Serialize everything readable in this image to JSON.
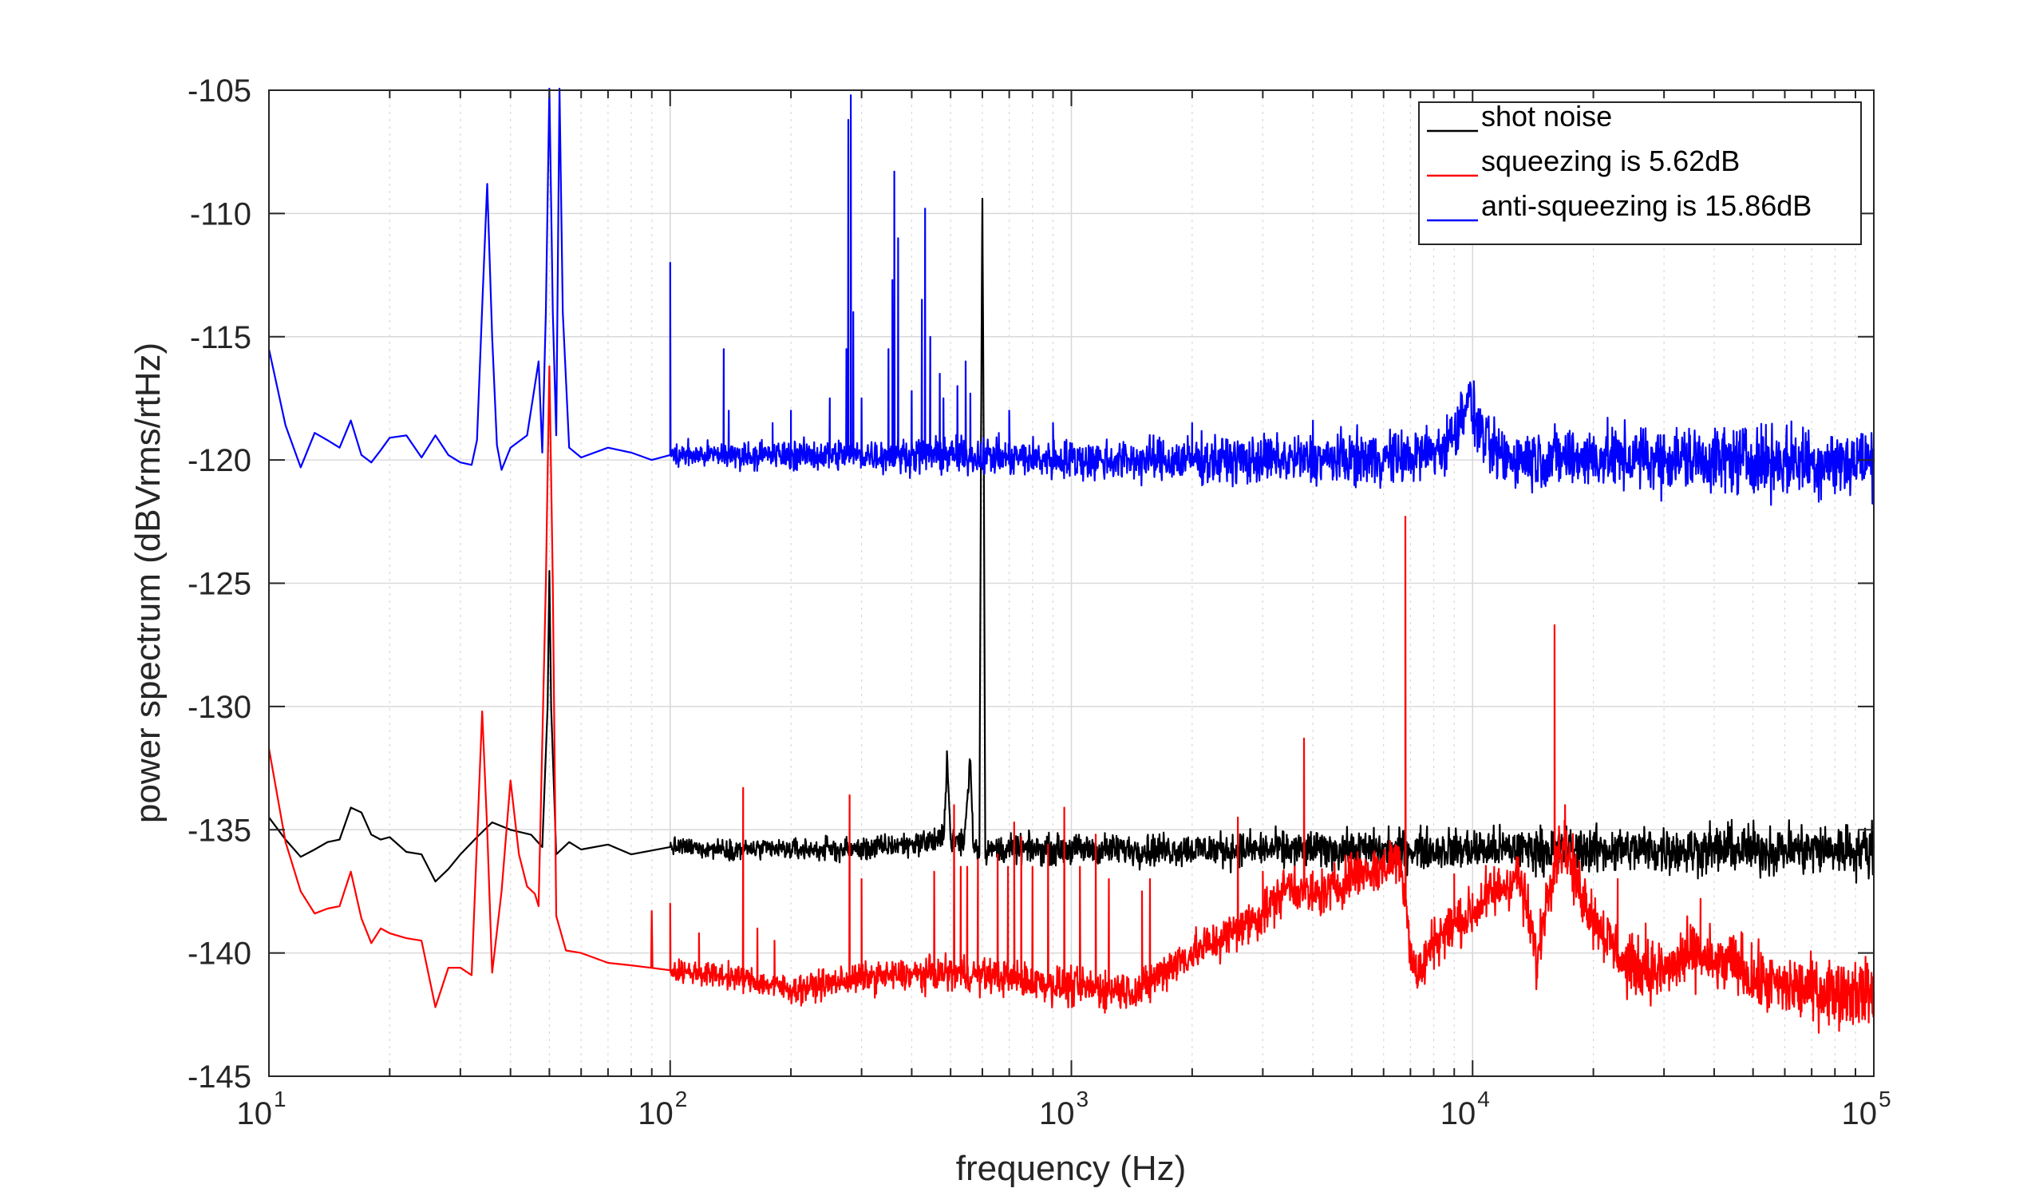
{
  "chart_data": {
    "type": "line",
    "xscale": "log",
    "xlabel": "frequency (Hz)",
    "ylabel": "power spectrum (dBVrms/rtHz)",
    "xlim": [
      10,
      100000
    ],
    "ylim": [
      -145,
      -105
    ],
    "x_ticks": [
      {
        "base": "10",
        "exp": "1"
      },
      {
        "base": "10",
        "exp": "2"
      },
      {
        "base": "10",
        "exp": "3"
      },
      {
        "base": "10",
        "exp": "4"
      },
      {
        "base": "10",
        "exp": "5"
      }
    ],
    "y_ticks": [
      "-105",
      "-110",
      "-115",
      "-120",
      "-125",
      "-130",
      "-135",
      "-140",
      "-145"
    ],
    "grid": true,
    "legend_position": "top-right",
    "series": [
      {
        "name": "shot noise",
        "color": "#000000",
        "baseline": -135.8,
        "noise": 0.55,
        "points": [
          [
            10,
            -134.5
          ],
          [
            11,
            -135.4
          ],
          [
            12,
            -136.1
          ],
          [
            13,
            -135.8
          ],
          [
            14,
            -135.5
          ],
          [
            15,
            -135.4
          ],
          [
            16,
            -134.1
          ],
          [
            17,
            -134.3
          ],
          [
            18,
            -135.2
          ],
          [
            19,
            -135.4
          ],
          [
            20,
            -135.3
          ],
          [
            22,
            -135.9
          ],
          [
            24,
            -136.0
          ],
          [
            26,
            -137.1
          ],
          [
            28,
            -136.6
          ],
          [
            30,
            -136.0
          ],
          [
            33,
            -135.3
          ],
          [
            36,
            -134.7
          ],
          [
            40,
            -135.0
          ],
          [
            45,
            -135.2
          ],
          [
            48,
            -135.7
          ],
          [
            49.5,
            -130.0
          ],
          [
            50,
            -124.5
          ],
          [
            50.5,
            -130.0
          ],
          [
            52,
            -136.0
          ],
          [
            56,
            -135.5
          ],
          [
            60,
            -135.8
          ],
          [
            70,
            -135.6
          ],
          [
            80,
            -136.0
          ],
          [
            100,
            -135.7
          ],
          [
            150,
            -135.8
          ],
          [
            300,
            -135.8
          ],
          [
            480,
            -135.4
          ],
          [
            490,
            -131.9
          ],
          [
            500,
            -135.4
          ],
          [
            540,
            -135.5
          ],
          [
            560,
            -132.2
          ],
          [
            570,
            -135.6
          ],
          [
            590,
            -135.8
          ],
          [
            595,
            -120.0
          ],
          [
            600,
            -109.4
          ],
          [
            605,
            -120.0
          ],
          [
            610,
            -135.8
          ],
          [
            1000,
            -135.8
          ],
          [
            10000,
            -135.8
          ],
          [
            100000,
            -135.8
          ]
        ],
        "spikes": []
      },
      {
        "name": "squeezing is 5.62dB",
        "color": "#ff0000",
        "noise": 0.7,
        "points": [
          [
            10,
            -131.7
          ],
          [
            11,
            -135.5
          ],
          [
            12,
            -137.5
          ],
          [
            13,
            -138.4
          ],
          [
            14,
            -138.2
          ],
          [
            15,
            -138.1
          ],
          [
            16,
            -136.7
          ],
          [
            17,
            -138.6
          ],
          [
            18,
            -139.6
          ],
          [
            19,
            -139.0
          ],
          [
            20,
            -139.2
          ],
          [
            22,
            -139.4
          ],
          [
            24,
            -139.5
          ],
          [
            26,
            -142.2
          ],
          [
            28,
            -140.6
          ],
          [
            30,
            -140.6
          ],
          [
            32,
            -140.9
          ],
          [
            34,
            -130.2
          ],
          [
            35,
            -135.0
          ],
          [
            36,
            -140.8
          ],
          [
            38,
            -137.5
          ],
          [
            40,
            -133.0
          ],
          [
            42,
            -136.0
          ],
          [
            44,
            -137.3
          ],
          [
            46,
            -137.6
          ],
          [
            47,
            -138.1
          ],
          [
            49,
            -125.0
          ],
          [
            50,
            -116.2
          ],
          [
            51,
            -125.0
          ],
          [
            52,
            -138.5
          ],
          [
            55,
            -139.9
          ],
          [
            60,
            -140.0
          ],
          [
            70,
            -140.4
          ],
          [
            80,
            -140.5
          ],
          [
            100,
            -140.7
          ],
          [
            150,
            -141.0
          ],
          [
            200,
            -141.5
          ],
          [
            300,
            -141.0
          ],
          [
            500,
            -140.8
          ],
          [
            700,
            -141.0
          ],
          [
            1000,
            -141.4
          ],
          [
            1500,
            -141.5
          ],
          [
            1700,
            -140.7
          ],
          [
            2000,
            -140.0
          ],
          [
            2500,
            -139.2
          ],
          [
            3000,
            -138.4
          ],
          [
            3500,
            -137.2
          ],
          [
            4000,
            -137.7
          ],
          [
            4500,
            -137.4
          ],
          [
            5000,
            -136.8
          ],
          [
            6000,
            -136.6
          ],
          [
            6500,
            -136.0
          ],
          [
            6800,
            -137.5
          ],
          [
            7000,
            -140.0
          ],
          [
            7300,
            -141.0
          ],
          [
            8000,
            -139.5
          ],
          [
            9000,
            -138.8
          ],
          [
            10000,
            -138.4
          ],
          [
            11000,
            -137.6
          ],
          [
            12000,
            -137.3
          ],
          [
            13000,
            -136.8
          ],
          [
            14000,
            -139.0
          ],
          [
            14500,
            -140.5
          ],
          [
            15000,
            -138.5
          ],
          [
            16000,
            -136.2
          ],
          [
            17000,
            -135.5
          ],
          [
            18000,
            -137.0
          ],
          [
            20000,
            -138.5
          ],
          [
            24000,
            -140.5
          ],
          [
            30000,
            -140.8
          ],
          [
            36000,
            -140.0
          ],
          [
            40000,
            -140.5
          ],
          [
            46000,
            -140.4
          ],
          [
            50000,
            -141.1
          ],
          [
            60000,
            -141.4
          ],
          [
            100000,
            -141.6
          ]
        ],
        "spikes": [
          [
            90,
            -138.3
          ],
          [
            100,
            -138.0
          ],
          [
            118,
            -139.2
          ],
          [
            152,
            -133.3
          ],
          [
            165,
            -139.0
          ],
          [
            182,
            -139.5
          ],
          [
            280,
            -133.6
          ],
          [
            300,
            -137.0
          ],
          [
            455,
            -136.7
          ],
          [
            510,
            -134.0
          ],
          [
            530,
            -136.5
          ],
          [
            550,
            -136.5
          ],
          [
            585,
            -136.2
          ],
          [
            655,
            -136.0
          ],
          [
            695,
            -136.5
          ],
          [
            720,
            -134.7
          ],
          [
            750,
            -135.3
          ],
          [
            800,
            -136.5
          ],
          [
            875,
            -135.6
          ],
          [
            960,
            -134.1
          ],
          [
            1050,
            -136.5
          ],
          [
            1150,
            -135.2
          ],
          [
            1240,
            -137.0
          ],
          [
            1500,
            -137.5
          ],
          [
            1570,
            -137.0
          ],
          [
            2600,
            -134.5
          ],
          [
            3000,
            -136.7
          ],
          [
            3800,
            -131.3
          ],
          [
            6800,
            -122.3
          ],
          [
            9000,
            -136.8
          ],
          [
            16000,
            -126.7
          ],
          [
            17000,
            -134.0
          ],
          [
            23000,
            -137.0
          ],
          [
            27000,
            -138.8
          ],
          [
            33000,
            -139.2
          ],
          [
            37000,
            -137.8
          ]
        ]
      },
      {
        "name": "anti-squeezing is 15.86dB",
        "color": "#0000ff",
        "noise": 0.75,
        "points": [
          [
            10,
            -115.5
          ],
          [
            11,
            -118.6
          ],
          [
            12,
            -120.3
          ],
          [
            13,
            -118.9
          ],
          [
            14,
            -119.2
          ],
          [
            15,
            -119.5
          ],
          [
            16,
            -118.4
          ],
          [
            17,
            -119.8
          ],
          [
            18,
            -120.1
          ],
          [
            19,
            -119.6
          ],
          [
            20,
            -119.1
          ],
          [
            22,
            -119.0
          ],
          [
            24,
            -119.9
          ],
          [
            26,
            -119.0
          ],
          [
            28,
            -119.8
          ],
          [
            30,
            -120.1
          ],
          [
            32,
            -120.2
          ],
          [
            33,
            -119.2
          ],
          [
            34,
            -113.8
          ],
          [
            35,
            -108.8
          ],
          [
            36,
            -115.0
          ],
          [
            37,
            -119.4
          ],
          [
            38,
            -120.4
          ],
          [
            40,
            -119.5
          ],
          [
            44,
            -119.0
          ],
          [
            47,
            -116.0
          ],
          [
            48,
            -119.7
          ],
          [
            49,
            -114.0
          ],
          [
            50,
            -104.0
          ],
          [
            51,
            -114.0
          ],
          [
            52,
            -119.0
          ],
          [
            53,
            -104.0
          ],
          [
            54,
            -114.0
          ],
          [
            56,
            -119.5
          ],
          [
            60,
            -119.9
          ],
          [
            70,
            -119.5
          ],
          [
            80,
            -119.7
          ],
          [
            90,
            -120.0
          ],
          [
            100,
            -119.8
          ],
          [
            200,
            -119.8
          ],
          [
            500,
            -119.8
          ],
          [
            1000,
            -120.0
          ],
          [
            3000,
            -120.0
          ],
          [
            7000,
            -119.9
          ],
          [
            8500,
            -119.5
          ],
          [
            9300,
            -118.5
          ],
          [
            9700,
            -117.3
          ],
          [
            10200,
            -118.5
          ],
          [
            11000,
            -119.5
          ],
          [
            12000,
            -119.9
          ],
          [
            20000,
            -119.9
          ],
          [
            50000,
            -120.0
          ],
          [
            100000,
            -120.1
          ]
        ],
        "spikes": [
          [
            100,
            -112.0
          ],
          [
            136,
            -115.5
          ],
          [
            140,
            -118.0
          ],
          [
            176,
            -119.5
          ],
          [
            180,
            -118.5
          ],
          [
            200,
            -118.0
          ],
          [
            250,
            -117.5
          ],
          [
            275,
            -115.5
          ],
          [
            278,
            -106.2
          ],
          [
            282,
            -105.2
          ],
          [
            286,
            -114.0
          ],
          [
            300,
            -117.5
          ],
          [
            350,
            -115.5
          ],
          [
            358,
            -112.7
          ],
          [
            362,
            -108.3
          ],
          [
            370,
            -111.0
          ],
          [
            400,
            -117.2
          ],
          [
            424,
            -113.5
          ],
          [
            432,
            -109.8
          ],
          [
            445,
            -115.0
          ],
          [
            470,
            -116.5
          ],
          [
            480,
            -117.5
          ],
          [
            520,
            -117.0
          ],
          [
            545,
            -116.0
          ],
          [
            560,
            -117.3
          ],
          [
            700,
            -118.0
          ],
          [
            900,
            -118.5
          ],
          [
            2000,
            -118.5
          ],
          [
            4000,
            -118.4
          ]
        ]
      }
    ]
  }
}
